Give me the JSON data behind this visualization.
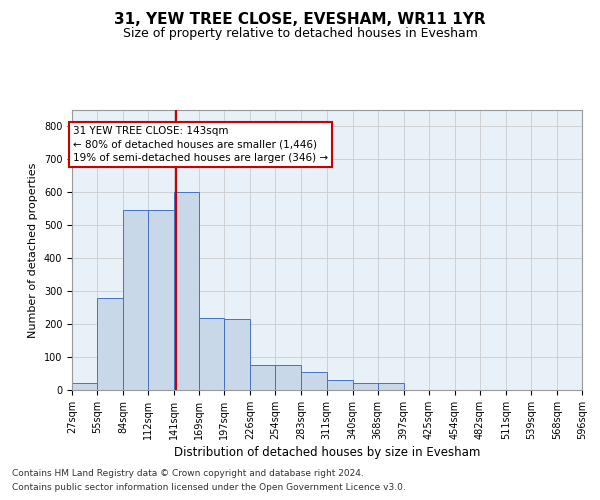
{
  "title1": "31, YEW TREE CLOSE, EVESHAM, WR11 1YR",
  "title2": "Size of property relative to detached houses in Evesham",
  "xlabel": "Distribution of detached houses by size in Evesham",
  "ylabel": "Number of detached properties",
  "footnote1": "Contains HM Land Registry data © Crown copyright and database right 2024.",
  "footnote2": "Contains public sector information licensed under the Open Government Licence v3.0.",
  "annotation_line1": "31 YEW TREE CLOSE: 143sqm",
  "annotation_line2": "← 80% of detached houses are smaller (1,446)",
  "annotation_line3": "19% of semi-detached houses are larger (346) →",
  "bar_edges": [
    27,
    55,
    84,
    112,
    141,
    169,
    197,
    226,
    254,
    283,
    311,
    340,
    368,
    397,
    425,
    454,
    482,
    511,
    539,
    568,
    596
  ],
  "bar_heights": [
    20,
    280,
    545,
    545,
    600,
    220,
    215,
    75,
    75,
    55,
    30,
    20,
    20,
    0,
    0,
    0,
    0,
    0,
    0,
    0
  ],
  "bar_color": "#c8d8e8",
  "bar_edge_color": "#4472c4",
  "vline_color": "#cc0000",
  "vline_x": 143,
  "annotation_box_color": "#cc0000",
  "ylim": [
    0,
    850
  ],
  "yticks": [
    0,
    100,
    200,
    300,
    400,
    500,
    600,
    700,
    800
  ],
  "grid_color": "#cccccc",
  "bg_color": "#e8f0f8",
  "title_fontsize": 11,
  "subtitle_fontsize": 9,
  "ylabel_fontsize": 8,
  "xlabel_fontsize": 8.5,
  "tick_fontsize": 7,
  "annot_fontsize": 7.5,
  "footnote_fontsize": 6.5
}
